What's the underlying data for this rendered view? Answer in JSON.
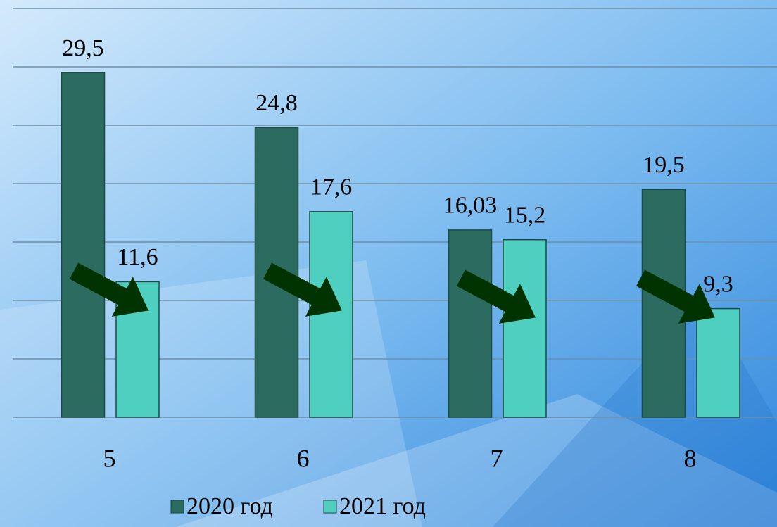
{
  "chart_data": {
    "type": "bar",
    "categories": [
      "5",
      "6",
      "7",
      "8"
    ],
    "series": [
      {
        "name": "2020 год",
        "color": "#2b6b60",
        "values": [
          29.5,
          24.8,
          16.03,
          19.5
        ],
        "value_labels": [
          "29,5",
          "24,8",
          "16,03",
          "19,5"
        ]
      },
      {
        "name": "2021 год",
        "color": "#4fcfc0",
        "values": [
          11.6,
          17.6,
          15.2,
          9.3
        ],
        "value_labels": [
          "11,6",
          "17,6",
          "15,2",
          "9,3"
        ]
      }
    ],
    "ylim": [
      0,
      35
    ],
    "yticks": [
      0,
      5,
      10,
      15,
      20,
      25,
      30,
      35
    ],
    "grid": true,
    "legend": "bottom"
  }
}
